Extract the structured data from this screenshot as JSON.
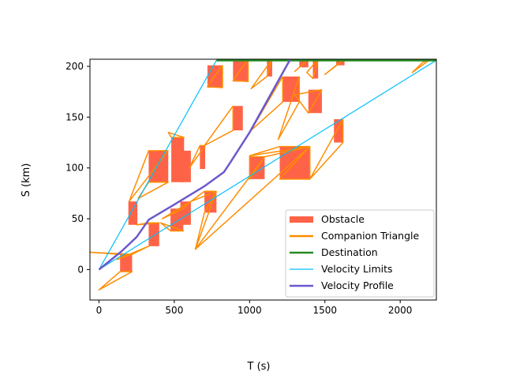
{
  "chart_data": {
    "type": "line",
    "title": "",
    "xlabel": "T (s)",
    "ylabel": "S (km)",
    "xlim": [
      -60,
      2240
    ],
    "ylim": [
      -30,
      207
    ],
    "xticks": [
      0,
      500,
      1000,
      1500,
      2000
    ],
    "yticks": [
      0,
      50,
      100,
      150,
      200
    ],
    "grid": false,
    "legend": {
      "placement": "lower-right",
      "entries": [
        {
          "name": "Obstacle",
          "color": "#ff6347",
          "style": "patch"
        },
        {
          "name": "Companion Triangle",
          "color": "#ff8c00",
          "style": "line"
        },
        {
          "name": "Destination",
          "color": "#228b22",
          "style": "line"
        },
        {
          "name": "Velocity Limits",
          "color": "#00bfff",
          "style": "thin-line"
        },
        {
          "name": "Velocity Profile",
          "color": "#6a5acd",
          "style": "line"
        }
      ]
    },
    "colors": {
      "obstacle": "#ff6347",
      "companion": "#ff8c00",
      "destination": "#228b22",
      "limits": "#00bfff",
      "profile": "#6a5acd"
    },
    "obstacles": [
      {
        "t0": 140,
        "t1": 220,
        "s0": -2,
        "s1": 15
      },
      {
        "t0": 195,
        "t1": 255,
        "s0": 44,
        "s1": 67
      },
      {
        "t0": 330,
        "t1": 400,
        "s0": 23,
        "s1": 46
      },
      {
        "t0": 330,
        "t1": 460,
        "s0": 86,
        "s1": 117
      },
      {
        "t0": 475,
        "t1": 560,
        "s0": 38,
        "s1": 60
      },
      {
        "t0": 480,
        "t1": 565,
        "s0": 86,
        "s1": 130
      },
      {
        "t0": 540,
        "t1": 610,
        "s0": 44,
        "s1": 67
      },
      {
        "t0": 540,
        "t1": 610,
        "s0": 86,
        "s1": 117
      },
      {
        "t0": 670,
        "t1": 705,
        "s0": 99,
        "s1": 122
      },
      {
        "t0": 700,
        "t1": 780,
        "s0": 56,
        "s1": 77
      },
      {
        "t0": 720,
        "t1": 820,
        "s0": 179,
        "s1": 201
      },
      {
        "t0": 890,
        "t1": 955,
        "s0": 137,
        "s1": 161
      },
      {
        "t0": 890,
        "t1": 990,
        "s0": 185,
        "s1": 207
      },
      {
        "t0": 1000,
        "t1": 1100,
        "s0": 89,
        "s1": 111
      },
      {
        "t0": 1115,
        "t1": 1150,
        "s0": 190,
        "s1": 207
      },
      {
        "t0": 1200,
        "t1": 1400,
        "s0": 89,
        "s1": 121
      },
      {
        "t0": 1220,
        "t1": 1330,
        "s0": 165,
        "s1": 190
      },
      {
        "t0": 1330,
        "t1": 1390,
        "s0": 199,
        "s1": 207
      },
      {
        "t0": 1390,
        "t1": 1480,
        "s0": 154,
        "s1": 177
      },
      {
        "t0": 1420,
        "t1": 1455,
        "s0": 188,
        "s1": 207
      },
      {
        "t0": 1560,
        "t1": 1620,
        "s0": 125,
        "s1": 148
      },
      {
        "t0": 1575,
        "t1": 1630,
        "s0": 201,
        "s1": 207
      }
    ],
    "companion_triangles": [
      [
        [
          140,
          15
        ],
        [
          -60,
          17
        ],
        [
          220,
          15
        ]
      ],
      [
        [
          140,
          -2
        ],
        [
          0,
          -20
        ],
        [
          220,
          -2
        ]
      ],
      [
        [
          220,
          15
        ],
        [
          120,
          10
        ],
        [
          330,
          23
        ]
      ],
      [
        [
          330,
          46
        ],
        [
          250,
          44
        ],
        [
          400,
          46
        ]
      ],
      [
        [
          460,
          117
        ],
        [
          200,
          67
        ],
        [
          330,
          117
        ]
      ],
      [
        [
          330,
          86
        ],
        [
          260,
          70
        ],
        [
          460,
          86
        ]
      ],
      [
        [
          480,
          130
        ],
        [
          460,
          135
        ],
        [
          565,
          130
        ]
      ],
      [
        [
          560,
          60
        ],
        [
          420,
          50
        ],
        [
          610,
          67
        ]
      ],
      [
        [
          475,
          38
        ],
        [
          410,
          46
        ],
        [
          560,
          38
        ]
      ],
      [
        [
          780,
          77
        ],
        [
          640,
          20
        ],
        [
          700,
          56
        ]
      ],
      [
        [
          780,
          77
        ],
        [
          610,
          67
        ],
        [
          700,
          77
        ]
      ],
      [
        [
          705,
          122
        ],
        [
          600,
          100
        ],
        [
          670,
          122
        ]
      ],
      [
        [
          890,
          161
        ],
        [
          700,
          122
        ],
        [
          890,
          137
        ]
      ],
      [
        [
          820,
          201
        ],
        [
          720,
          180
        ],
        [
          820,
          179
        ]
      ],
      [
        [
          990,
          207
        ],
        [
          890,
          186
        ],
        [
          990,
          185
        ]
      ],
      [
        [
          1100,
          111
        ],
        [
          1000,
          89
        ],
        [
          1000,
          111
        ]
      ],
      [
        [
          1150,
          207
        ],
        [
          1010,
          178
        ],
        [
          1115,
          190
        ]
      ],
      [
        [
          1220,
          190
        ],
        [
          1010,
          137
        ],
        [
          1220,
          165
        ]
      ],
      [
        [
          1400,
          121
        ],
        [
          1000,
          112
        ],
        [
          1200,
          121
        ]
      ],
      [
        [
          1400,
          89
        ],
        [
          1200,
          89
        ],
        [
          1400,
          121
        ]
      ],
      [
        [
          1330,
          190
        ],
        [
          1190,
          128
        ],
        [
          1330,
          165
        ]
      ],
      [
        [
          1480,
          177
        ],
        [
          1300,
          172
        ],
        [
          1390,
          154
        ]
      ],
      [
        [
          1390,
          207
        ],
        [
          1300,
          195
        ],
        [
          1330,
          199
        ]
      ],
      [
        [
          1455,
          207
        ],
        [
          1380,
          194
        ],
        [
          1420,
          188
        ]
      ],
      [
        [
          1620,
          148
        ],
        [
          1400,
          89
        ],
        [
          1620,
          125
        ]
      ],
      [
        [
          1630,
          207
        ],
        [
          1500,
          192
        ],
        [
          1575,
          201
        ]
      ],
      [
        [
          2200,
          207
        ],
        [
          2080,
          194
        ],
        [
          2150,
          204
        ]
      ],
      [
        [
          1100,
          111
        ],
        [
          640,
          20
        ],
        [
          1400,
          121
        ]
      ]
    ],
    "destination": {
      "t0": 780,
      "t1": 2240,
      "s": 206
    },
    "velocity_limits": [
      {
        "name": "upper",
        "points": [
          [
            0,
            0
          ],
          [
            780,
            206
          ]
        ]
      },
      {
        "name": "lower",
        "points": [
          [
            0,
            0
          ],
          [
            2240,
            206
          ]
        ]
      }
    ],
    "velocity_profile": [
      [
        0,
        0
      ],
      [
        150,
        18
      ],
      [
        250,
        32
      ],
      [
        330,
        49
      ],
      [
        500,
        64
      ],
      [
        700,
        82
      ],
      [
        830,
        96
      ],
      [
        870,
        105
      ],
      [
        1000,
        135
      ],
      [
        1270,
        207
      ]
    ]
  }
}
